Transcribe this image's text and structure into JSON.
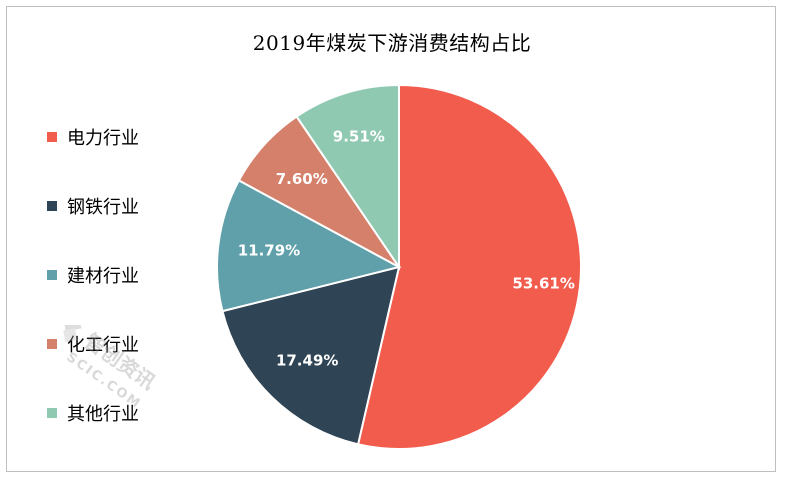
{
  "chart_data": {
    "type": "pie",
    "title": "2019年煤炭下游消费结构占比",
    "legend_position": "left",
    "slices": [
      {
        "name": "电力行业",
        "value": 53.61,
        "label": "53.61%",
        "color": "#f25c4d"
      },
      {
        "name": "钢铁行业",
        "value": 17.49,
        "label": "17.49%",
        "color": "#2f4454"
      },
      {
        "name": "建材行业",
        "value": 11.79,
        "label": "11.79%",
        "color": "#5fa0aa"
      },
      {
        "name": "化工行业",
        "value": 7.6,
        "label": "7.60%",
        "color": "#d4806a"
      },
      {
        "name": "其他行业",
        "value": 9.51,
        "label": "9.51%",
        "color": "#90c9b2"
      }
    ]
  },
  "watermark": {
    "text": "智创资讯",
    "subtext": "SCIC.COM"
  }
}
